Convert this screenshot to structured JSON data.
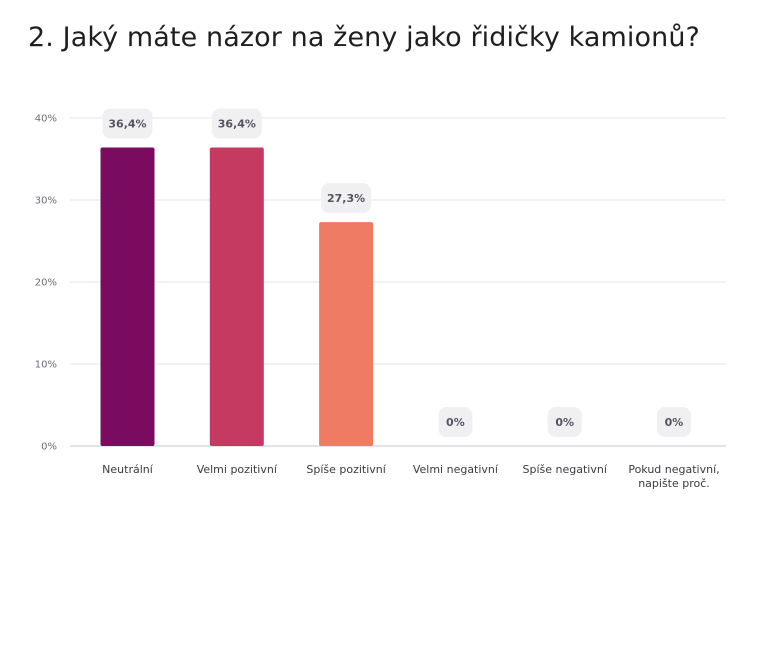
{
  "title": "2. Jaký máte názor na ženy jako řidičky kamionů?",
  "chart_data": {
    "type": "bar",
    "title": "2. Jaký máte názor na ženy jako řidičky kamionů?",
    "categories": [
      [
        "Neutrální"
      ],
      [
        "Velmi pozitivní"
      ],
      [
        "Spíše pozitivní"
      ],
      [
        "Velmi negativní"
      ],
      [
        "Spíše negativní"
      ],
      [
        "Pokud negativní,",
        "napište proč."
      ]
    ],
    "values": [
      36.4,
      36.4,
      27.3,
      0,
      0,
      0
    ],
    "data_labels": [
      "36,4%",
      "36,4%",
      "27,3%",
      "0%",
      "0%",
      "0%"
    ],
    "colors": [
      "#7a0b5e",
      "#c43a60",
      "#f07b63",
      "#f07b63",
      "#f07b63",
      "#f07b63"
    ],
    "y_ticks": [
      "0%",
      "10%",
      "20%",
      "30%",
      "40%"
    ],
    "y_tick_values": [
      0,
      10,
      20,
      30,
      40
    ],
    "ylim": [
      0,
      40
    ],
    "grid": true,
    "legend": "none"
  }
}
